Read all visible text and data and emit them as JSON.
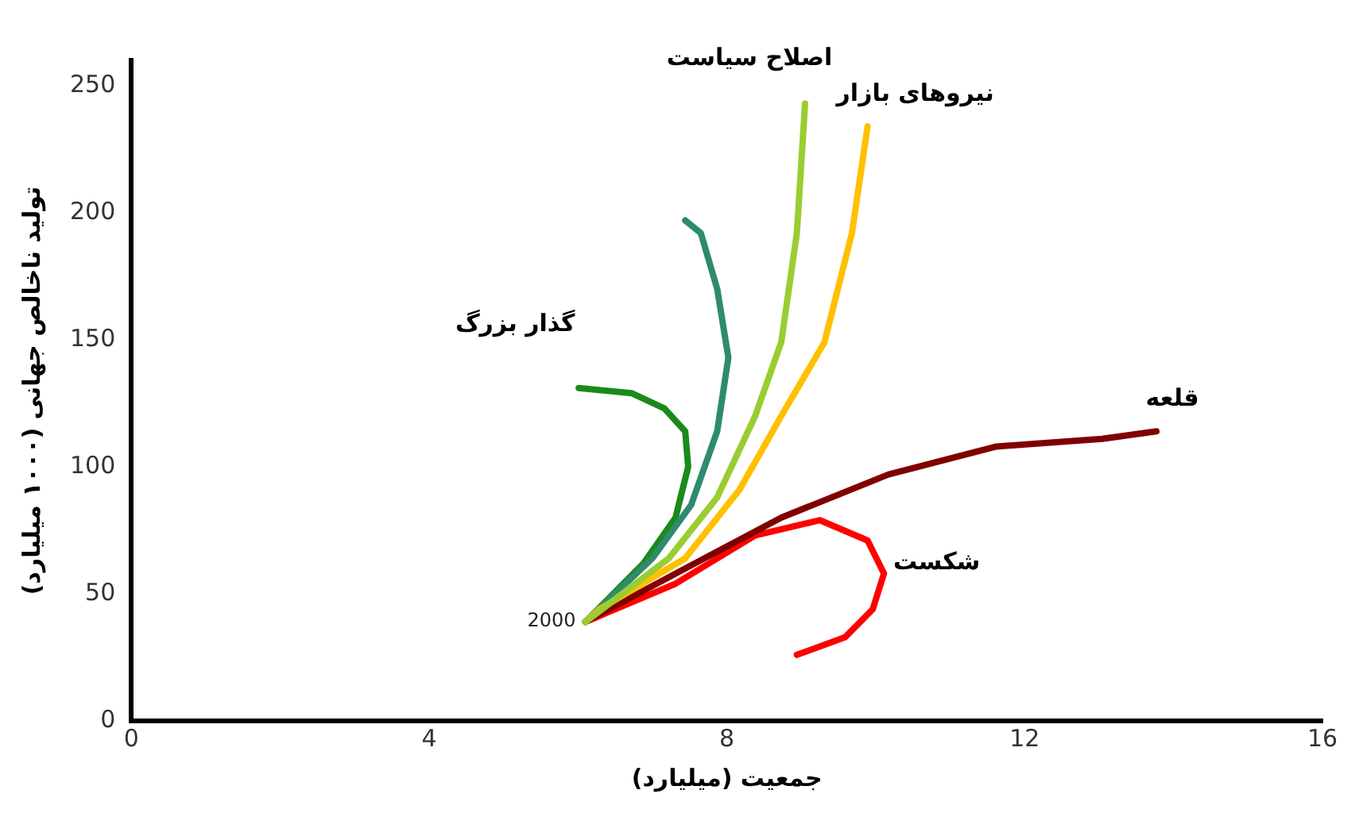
{
  "chart_data": {
    "type": "line",
    "xlabel": "جمعیت (میلیارد)",
    "ylabel": "تولید ناخالص جهانی (۱۰۰۰ میلیارد)",
    "xlim": [
      0,
      16
    ],
    "xticks": [
      0,
      4,
      8,
      12,
      16
    ],
    "ylim": [
      0,
      260
    ],
    "yticks": [
      0,
      50,
      100,
      150,
      200,
      250
    ],
    "grid": false,
    "legend": false,
    "marker": "none",
    "line_style": "solid",
    "annotations": [
      {
        "text": "2000",
        "x": 6.1,
        "y": 39
      }
    ],
    "series": [
      {
        "name": "اصلاح سیاست",
        "color": "#9acd32",
        "x": [
          6.1,
          7.22,
          7.87,
          8.38,
          8.73,
          8.94,
          9.05
        ],
        "values": [
          39,
          64,
          88,
          120,
          149,
          192,
          243
        ]
      },
      {
        "name": "نیروهای بازار",
        "color": "#ffc000",
        "x": [
          6.1,
          6.29,
          7.44,
          8.17,
          8.73,
          9.31,
          9.68,
          9.89
        ],
        "values": [
          39,
          44,
          64,
          91,
          120,
          149,
          192,
          234
        ]
      },
      {
        "color": "#2e8b6e",
        "x": [
          6.1,
          7.0,
          7.52,
          7.87,
          8.02,
          7.87,
          7.65,
          7.44
        ],
        "values": [
          39,
          64,
          85,
          114,
          143,
          170,
          192,
          197
        ]
      },
      {
        "name": "گذار بزرگ",
        "color": "#1a8a1a",
        "x": [
          6.1,
          6.88,
          7.31,
          7.48,
          7.44,
          7.16,
          6.72,
          6.01
        ],
        "values": [
          39,
          62,
          80,
          100,
          114,
          123,
          129,
          131
        ]
      },
      {
        "name": "قلعه",
        "color": "#800000",
        "x": [
          6.1,
          7.31,
          8.73,
          10.17,
          11.62,
          13.04,
          13.77
        ],
        "values": [
          39,
          58,
          80,
          97,
          108,
          111,
          114
        ]
      },
      {
        "name": "شکست",
        "color": "#ff0000",
        "x": [
          6.1,
          7.31,
          8.38,
          9.25,
          9.89,
          10.11,
          9.96,
          9.59,
          8.94
        ],
        "values": [
          39,
          54,
          73,
          79,
          71,
          58,
          44,
          33,
          26
        ]
      }
    ]
  }
}
